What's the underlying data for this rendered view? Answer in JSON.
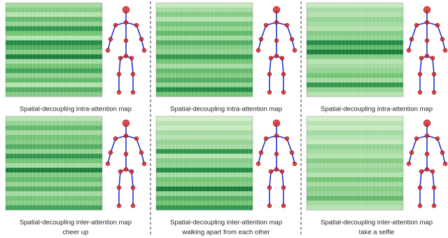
{
  "columns": [
    {
      "label": "cheer up",
      "maps": [
        {
          "caption": "Spatial-decoupling intra-attention map",
          "rows": [
            0.35,
            0.45,
            0.3,
            0.55,
            0.4,
            0.7,
            0.5,
            0.3,
            0.75,
            0.6,
            0.45,
            0.8,
            0.35,
            0.5,
            0.65,
            0.4,
            0.55,
            0.3,
            0.6,
            0.45
          ]
        },
        {
          "caption": "Spatial-decoupling inter-attention map",
          "rows": [
            0.3,
            0.4,
            0.55,
            0.35,
            0.5,
            0.45,
            0.6,
            0.4,
            0.7,
            0.5,
            0.35,
            0.8,
            0.45,
            0.55,
            0.4,
            0.6,
            0.35,
            0.5,
            0.45,
            0.65
          ]
        }
      ]
    },
    {
      "label": "walking apart from each other",
      "maps": [
        {
          "caption": "Spatial-decoupling intra-attention map",
          "rows": [
            0.25,
            0.35,
            0.45,
            0.3,
            0.5,
            0.4,
            0.55,
            0.35,
            0.6,
            0.45,
            0.4,
            0.7,
            0.5,
            0.35,
            0.55,
            0.45,
            0.6,
            0.4,
            0.75,
            0.5
          ]
        },
        {
          "caption": "Spatial-decoupling inter-attention map",
          "rows": [
            0.2,
            0.3,
            0.25,
            0.35,
            0.3,
            0.4,
            0.35,
            0.7,
            0.3,
            0.45,
            0.4,
            0.75,
            0.35,
            0.5,
            0.45,
            0.8,
            0.4,
            0.6,
            0.5,
            0.7
          ]
        }
      ]
    },
    {
      "label": "take a selfie",
      "maps": [
        {
          "caption": "Spatial-decoupling intra-attention map",
          "rows": [
            0.25,
            0.35,
            0.3,
            0.4,
            0.35,
            0.3,
            0.45,
            0.4,
            0.75,
            0.55,
            0.8,
            0.45,
            0.3,
            0.35,
            0.4,
            0.5,
            0.35,
            0.7,
            0.4,
            0.3
          ]
        },
        {
          "caption": "Spatial-decoupling inter-attention map",
          "rows": [
            0.2,
            0.3,
            0.25,
            0.35,
            0.3,
            0.25,
            0.4,
            0.35,
            0.3,
            0.45,
            0.35,
            0.4,
            0.3,
            0.5,
            0.35,
            0.45,
            0.4,
            0.55,
            0.35,
            0.3
          ]
        }
      ]
    }
  ]
}
